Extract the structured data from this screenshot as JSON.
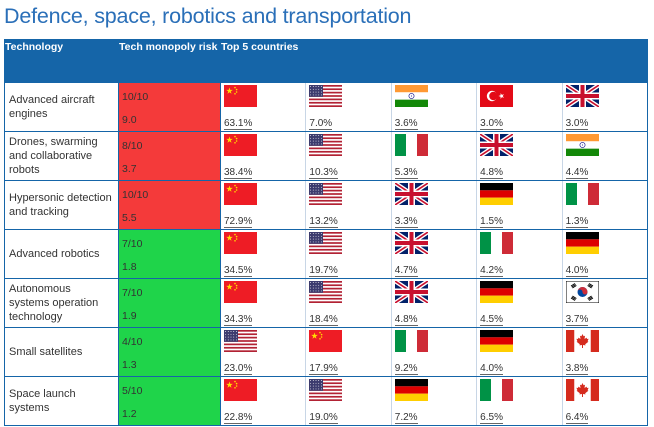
{
  "title": "Defence, space, robotics and transportation",
  "headers": {
    "technology": "Technology",
    "risk": "Tech monopoly risk",
    "top5": "Top 5 countries"
  },
  "colors": {
    "header": "#1565a8",
    "title": "#2a6fb8",
    "high_risk": "#f43a3a",
    "low_risk": "#1fd44a"
  },
  "rows": [
    {
      "tech": "Advanced aircraft engines",
      "risk": "10/10",
      "score": "9.0",
      "level": "red",
      "countries": [
        {
          "flag": "china",
          "pct": "63.1%"
        },
        {
          "flag": "usa",
          "pct": "7.0%"
        },
        {
          "flag": "india",
          "pct": "3.6%"
        },
        {
          "flag": "turkey",
          "pct": "3.0%"
        },
        {
          "flag": "uk",
          "pct": "3.0%"
        }
      ]
    },
    {
      "tech": "Drones, swarming and collaborative robots",
      "risk": "8/10",
      "score": "3.7",
      "level": "red",
      "countries": [
        {
          "flag": "china",
          "pct": "38.4%"
        },
        {
          "flag": "usa",
          "pct": "10.3%"
        },
        {
          "flag": "italy",
          "pct": "5.3%"
        },
        {
          "flag": "uk",
          "pct": "4.8%"
        },
        {
          "flag": "india",
          "pct": "4.4%"
        }
      ]
    },
    {
      "tech": "Hypersonic detection and tracking",
      "risk": "10/10",
      "score": "5.5",
      "level": "red",
      "countries": [
        {
          "flag": "china",
          "pct": "72.9%"
        },
        {
          "flag": "usa",
          "pct": "13.2%"
        },
        {
          "flag": "uk",
          "pct": "3.3%"
        },
        {
          "flag": "germany",
          "pct": "1.5%"
        },
        {
          "flag": "italy",
          "pct": "1.3%"
        }
      ]
    },
    {
      "tech": "Advanced robotics",
      "risk": "7/10",
      "score": "1.8",
      "level": "green",
      "countries": [
        {
          "flag": "china",
          "pct": "34.5%"
        },
        {
          "flag": "usa",
          "pct": "19.7%"
        },
        {
          "flag": "uk",
          "pct": "4.7%"
        },
        {
          "flag": "italy",
          "pct": "4.2%"
        },
        {
          "flag": "germany",
          "pct": "4.0%"
        }
      ]
    },
    {
      "tech": "Autonomous systems operation technology",
      "risk": "7/10",
      "score": "1.9",
      "level": "green",
      "countries": [
        {
          "flag": "china",
          "pct": "34.3%"
        },
        {
          "flag": "usa",
          "pct": "18.4%"
        },
        {
          "flag": "uk",
          "pct": "4.8%"
        },
        {
          "flag": "germany",
          "pct": "4.5%"
        },
        {
          "flag": "south-korea",
          "pct": "3.7%"
        }
      ]
    },
    {
      "tech": "Small satellites",
      "risk": "4/10",
      "score": "1.3",
      "level": "green",
      "countries": [
        {
          "flag": "usa",
          "pct": "23.0%"
        },
        {
          "flag": "china",
          "pct": "17.9%"
        },
        {
          "flag": "italy",
          "pct": "9.2%"
        },
        {
          "flag": "germany",
          "pct": "4.0%"
        },
        {
          "flag": "canada",
          "pct": "3.8%"
        }
      ]
    },
    {
      "tech": "Space launch systems",
      "risk": "5/10",
      "score": "1.2",
      "level": "green",
      "countries": [
        {
          "flag": "china",
          "pct": "22.8%"
        },
        {
          "flag": "usa",
          "pct": "19.0%"
        },
        {
          "flag": "germany",
          "pct": "7.2%"
        },
        {
          "flag": "italy",
          "pct": "6.5%"
        },
        {
          "flag": "canada",
          "pct": "6.4%"
        }
      ]
    }
  ]
}
